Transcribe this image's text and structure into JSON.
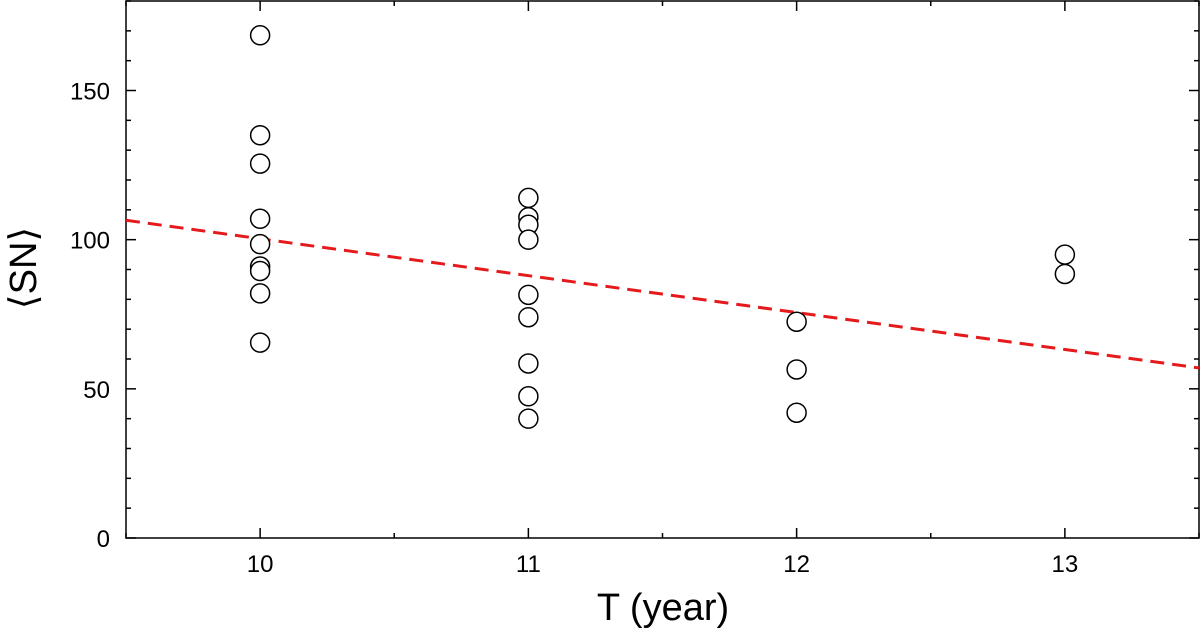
{
  "chart_data": {
    "type": "scatter",
    "xlabel": "T (year)",
    "ylabel": "⟨SN⟩",
    "xlim": [
      9.5,
      13.5
    ],
    "ylim": [
      0,
      180
    ],
    "x_ticks": [
      "10",
      "11",
      "12",
      "13"
    ],
    "y_ticks": [
      "0",
      "50",
      "100",
      "150"
    ],
    "grid": false,
    "legend": "none",
    "series": [
      {
        "marker": "open-circle",
        "color": "#000000",
        "points": [
          {
            "x": 10,
            "y": 168.5
          },
          {
            "x": 10,
            "y": 135
          },
          {
            "x": 10,
            "y": 125.5
          },
          {
            "x": 10,
            "y": 107
          },
          {
            "x": 10,
            "y": 98.5
          },
          {
            "x": 10,
            "y": 91
          },
          {
            "x": 10,
            "y": 89.5
          },
          {
            "x": 10,
            "y": 82
          },
          {
            "x": 10,
            "y": 65.5
          },
          {
            "x": 11,
            "y": 114
          },
          {
            "x": 11,
            "y": 107.5
          },
          {
            "x": 11,
            "y": 105
          },
          {
            "x": 11,
            "y": 100
          },
          {
            "x": 11,
            "y": 81.5
          },
          {
            "x": 11,
            "y": 74
          },
          {
            "x": 11,
            "y": 58.5
          },
          {
            "x": 11,
            "y": 47.5
          },
          {
            "x": 11,
            "y": 40
          },
          {
            "x": 12,
            "y": 72.5
          },
          {
            "x": 12,
            "y": 56.5
          },
          {
            "x": 12,
            "y": 42
          },
          {
            "x": 13,
            "y": 95
          },
          {
            "x": 13,
            "y": 88.5
          }
        ]
      }
    ],
    "fit_line": {
      "style": "dashed",
      "color": "#e41a1c",
      "points": [
        {
          "x": 9.5,
          "y": 106.5
        },
        {
          "x": 13.5,
          "y": 57
        }
      ]
    }
  }
}
